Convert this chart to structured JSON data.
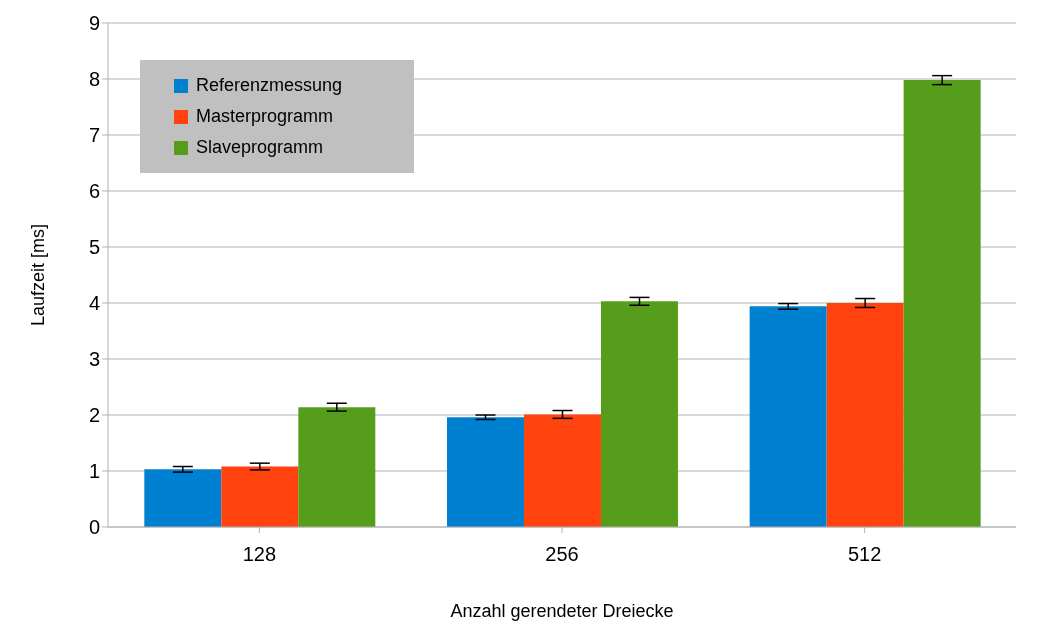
{
  "chart_data": {
    "type": "bar",
    "xlabel": "Anzahl gerendeter Dreiecke",
    "ylabel": "Laufzeit [ms]",
    "categories": [
      "128",
      "256",
      "512"
    ],
    "series": [
      {
        "name": "Referenzmessung",
        "color": "#0080d0",
        "values": [
          1.03,
          1.96,
          3.94
        ],
        "errors": [
          0.05,
          0.04,
          0.05
        ]
      },
      {
        "name": "Masterprogramm",
        "color": "#ff420e",
        "values": [
          1.08,
          2.01,
          4.0
        ],
        "errors": [
          0.06,
          0.07,
          0.08
        ]
      },
      {
        "name": "Slaveprogramm",
        "color": "#579d1c",
        "values": [
          2.14,
          4.03,
          7.98
        ],
        "errors": [
          0.07,
          0.07,
          0.08
        ]
      }
    ],
    "ylim": [
      0,
      9
    ],
    "yticks": [
      0,
      1,
      2,
      3,
      4,
      5,
      6,
      7,
      8,
      9
    ],
    "grid": "y",
    "legend": "top left"
  }
}
